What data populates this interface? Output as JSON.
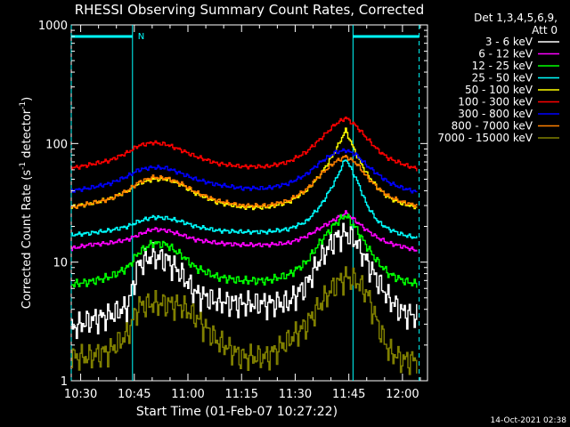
{
  "chart_data": {
    "type": "line",
    "title": "RHESSI Observing Summary Count Rates, Corrected",
    "xlabel": "Start Time (01-Feb-07 10:27:22)",
    "ylabel": "Corrected Count Rate (s⁻¹ detector⁻¹)",
    "ylabel_parts": {
      "pre": "Corrected Count Rate (s",
      "sup1": "-1",
      "mid": " detector",
      "sup2": "-1",
      "post": ")"
    },
    "y_scale": "log",
    "ylim": [
      1,
      1000
    ],
    "xlim": [
      "10:27:22",
      "12:07:00"
    ],
    "x_ticks": [
      "10:30",
      "10:45",
      "11:00",
      "11:15",
      "11:30",
      "11:45",
      "12:00"
    ],
    "y_ticks": [
      "1",
      "10",
      "100",
      "1000"
    ],
    "legend_header": [
      "Det 1,3,4,5,6,9,",
      "Att 0"
    ],
    "legend_placement": "top-right, outside plot",
    "footer_date": "14-Oct-2021 02:38",
    "night_flag": "N",
    "night_intervals": [
      [
        "10:27:22",
        "10:44:30"
      ],
      [
        "11:46:10",
        "12:04:40"
      ]
    ],
    "series": [
      {
        "name": "3 - 6 keV",
        "color": "#ffffff",
        "x": [
          "10:27:22",
          "10:32",
          "10:38",
          "10:43",
          "10:46",
          "10:50",
          "10:54",
          "10:58",
          "11:02",
          "11:08",
          "11:15",
          "11:22",
          "11:28",
          "11:33",
          "11:37",
          "11:41",
          "11:44",
          "11:47",
          "11:50",
          "11:53",
          "11:56",
          "12:00",
          "12:04"
        ],
        "y": [
          2.8,
          3.2,
          3.6,
          4.2,
          9.5,
          11.5,
          10.5,
          8.0,
          5.5,
          4.7,
          4.5,
          4.5,
          4.6,
          6.5,
          11,
          16,
          17.5,
          15,
          10,
          7,
          5,
          3.8,
          3.5
        ]
      },
      {
        "name": "6 - 12 keV",
        "color": "#ff00ff",
        "x": [
          "10:27:22",
          "10:32",
          "10:38",
          "10:43",
          "10:46",
          "10:50",
          "10:54",
          "10:58",
          "11:02",
          "11:08",
          "11:15",
          "11:22",
          "11:28",
          "11:33",
          "11:37",
          "11:41",
          "11:44",
          "11:47",
          "11:50",
          "11:53",
          "11:56",
          "12:00",
          "12:04"
        ],
        "y": [
          13,
          14,
          14.5,
          15.5,
          17,
          19,
          18.5,
          17,
          15.5,
          14.5,
          14,
          14,
          14.5,
          16.5,
          19.5,
          23,
          26,
          22,
          18.5,
          16,
          14.5,
          13.5,
          12.5
        ]
      },
      {
        "name": "12 - 25 keV",
        "color": "#00ff00",
        "x": [
          "10:27:22",
          "10:32",
          "10:38",
          "10:43",
          "10:46",
          "10:50",
          "10:54",
          "10:58",
          "11:02",
          "11:08",
          "11:15",
          "11:22",
          "11:28",
          "11:33",
          "11:37",
          "11:41",
          "11:44",
          "11:47",
          "11:50",
          "11:53",
          "11:56",
          "12:00",
          "12:04"
        ],
        "y": [
          6.5,
          6.8,
          7.5,
          9,
          12,
          14.5,
          14,
          11.5,
          9,
          7.5,
          7,
          7,
          7.8,
          10,
          15,
          21,
          25,
          19,
          13.5,
          10,
          8,
          7,
          6.5
        ]
      },
      {
        "name": "25 - 50 keV",
        "color": "#00ffff",
        "x": [
          "10:27:22",
          "10:32",
          "10:38",
          "10:43",
          "10:46",
          "10:50",
          "10:54",
          "10:58",
          "11:02",
          "11:08",
          "11:15",
          "11:22",
          "11:28",
          "11:33",
          "11:37",
          "11:41",
          "11:44",
          "11:47",
          "11:50",
          "11:53",
          "11:56",
          "12:00",
          "12:04"
        ],
        "y": [
          17,
          17.5,
          18.5,
          20,
          22,
          24,
          23.5,
          22,
          20,
          18.5,
          18,
          18,
          19,
          22,
          30,
          48,
          75,
          50,
          30,
          22,
          19,
          17,
          16
        ]
      },
      {
        "name": "50 - 100 keV",
        "color": "#ffff00",
        "x": [
          "10:27:22",
          "10:32",
          "10:38",
          "10:43",
          "10:46",
          "10:50",
          "10:54",
          "10:58",
          "11:02",
          "11:08",
          "11:15",
          "11:22",
          "11:28",
          "11:33",
          "11:37",
          "11:41",
          "11:44",
          "11:47",
          "11:50",
          "11:53",
          "11:56",
          "12:00",
          "12:04"
        ],
        "y": [
          29,
          31,
          34,
          40,
          46,
          50,
          50,
          45,
          38,
          32,
          29,
          29,
          32,
          40,
          55,
          85,
          130,
          80,
          55,
          42,
          35,
          31,
          29
        ]
      },
      {
        "name": "100 - 300 keV",
        "color": "#ff0000",
        "x": [
          "10:27:22",
          "10:32",
          "10:38",
          "10:43",
          "10:46",
          "10:50",
          "10:54",
          "10:58",
          "11:02",
          "11:08",
          "11:15",
          "11:22",
          "11:28",
          "11:33",
          "11:37",
          "11:41",
          "11:44",
          "11:47",
          "11:50",
          "11:53",
          "11:56",
          "12:00",
          "12:04"
        ],
        "y": [
          62,
          66,
          72,
          84,
          96,
          102,
          98,
          88,
          78,
          68,
          64,
          64,
          70,
          85,
          110,
          145,
          165,
          140,
          110,
          88,
          75,
          67,
          61
        ]
      },
      {
        "name": "300 - 800 keV",
        "color": "#0000ff",
        "x": [
          "10:27:22",
          "10:32",
          "10:38",
          "10:43",
          "10:46",
          "10:50",
          "10:54",
          "10:58",
          "11:02",
          "11:08",
          "11:15",
          "11:22",
          "11:28",
          "11:33",
          "11:37",
          "11:41",
          "11:44",
          "11:47",
          "11:50",
          "11:53",
          "11:56",
          "12:00",
          "12:04"
        ],
        "y": [
          40,
          42,
          46,
          53,
          60,
          63,
          62,
          56,
          50,
          45,
          42,
          42,
          46,
          55,
          70,
          84,
          88,
          80,
          65,
          55,
          47,
          42,
          39
        ]
      },
      {
        "name": "800 - 7000 keV",
        "color": "#ff8000",
        "x": [
          "10:27:22",
          "10:32",
          "10:38",
          "10:43",
          "10:46",
          "10:50",
          "10:54",
          "10:58",
          "11:02",
          "11:08",
          "11:15",
          "11:22",
          "11:28",
          "11:33",
          "11:37",
          "11:41",
          "11:44",
          "11:47",
          "11:50",
          "11:53",
          "11:56",
          "12:00",
          "12:04"
        ],
        "y": [
          29,
          31,
          34,
          40,
          47,
          52,
          51,
          46,
          39,
          33,
          30,
          30,
          33,
          41,
          55,
          70,
          78,
          68,
          52,
          42,
          36,
          32,
          30
        ]
      },
      {
        "name": "7000 - 15000 keV",
        "color": "#808000",
        "x": [
          "10:27:22",
          "10:32",
          "10:38",
          "10:43",
          "10:46",
          "10:50",
          "10:54",
          "10:58",
          "11:02",
          "11:08",
          "11:15",
          "11:22",
          "11:28",
          "11:33",
          "11:37",
          "11:41",
          "11:44",
          "11:47",
          "11:50",
          "11:53",
          "11:56",
          "12:00",
          "12:04"
        ],
        "y": [
          1.6,
          1.6,
          1.8,
          2.5,
          4.3,
          4.5,
          4.5,
          4.3,
          3.5,
          2.2,
          1.6,
          1.6,
          2.2,
          3.0,
          4.5,
          6.5,
          7.5,
          7.0,
          5.5,
          3.0,
          1.8,
          1.5,
          1.5
        ]
      }
    ]
  }
}
